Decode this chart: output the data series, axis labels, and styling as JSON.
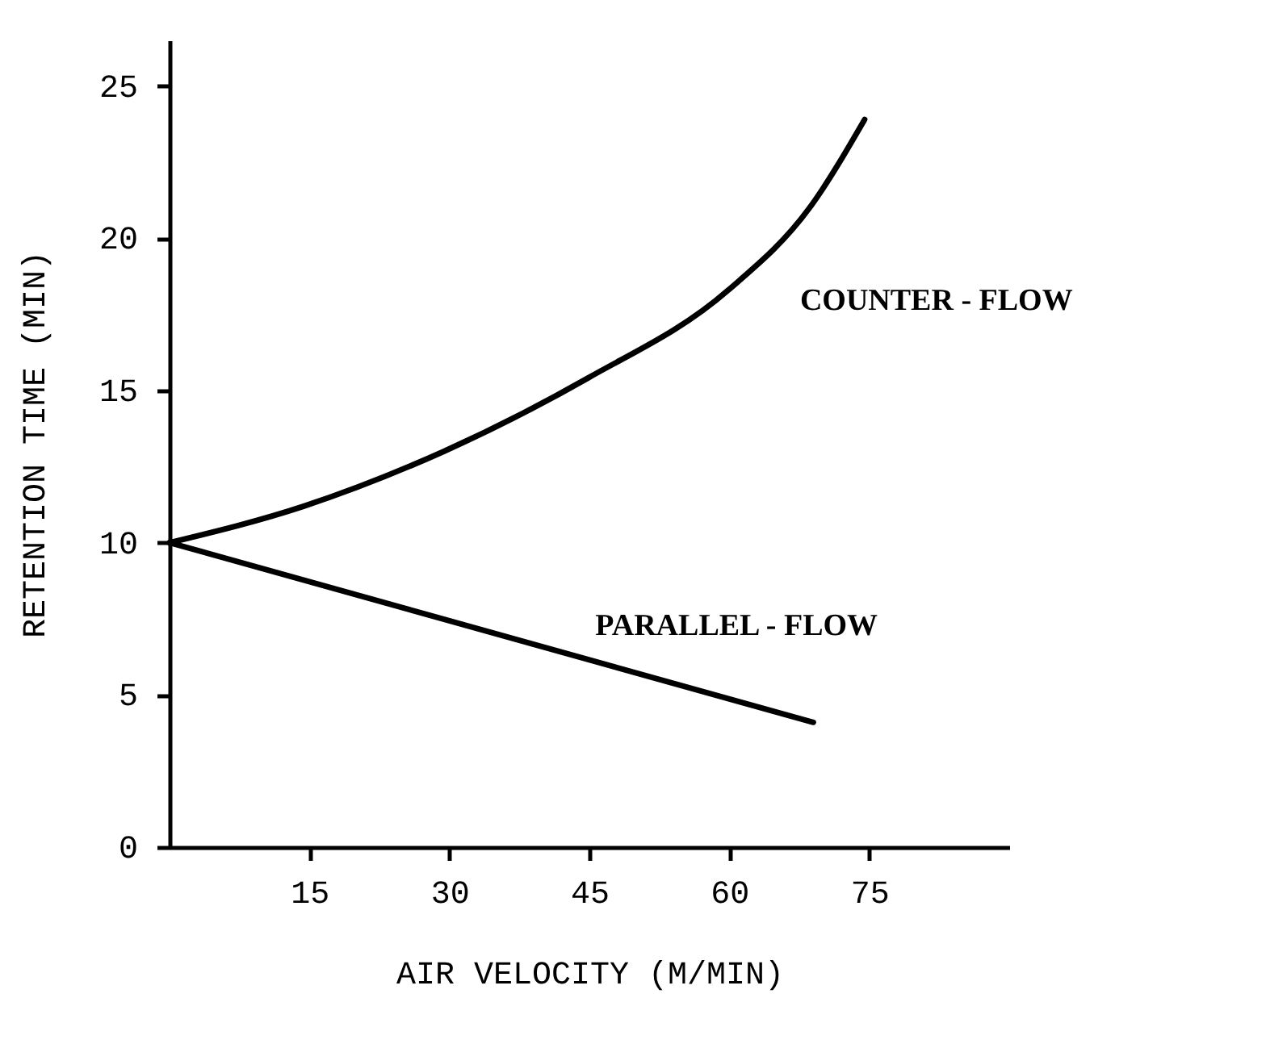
{
  "chart_data": {
    "type": "line",
    "xlabel": "AIR VELOCITY (M/MIN)",
    "ylabel": "RETENTION TIME (MIN)",
    "xlim": [
      0,
      90
    ],
    "ylim": [
      0,
      26.5
    ],
    "xticks": [
      15,
      30,
      45,
      60,
      75
    ],
    "yticks": [
      0,
      5,
      10,
      15,
      20,
      25
    ],
    "grid": false,
    "marker": "none",
    "line_style": "solid",
    "series": [
      {
        "name": "COUNTER - FLOW",
        "color": "#000000",
        "x": [
          0,
          14.4,
          29.4,
          44.8,
          59.9,
          68.6,
          74.5
        ],
        "values": [
          10,
          11.2,
          13.0,
          15.4,
          18.3,
          21.0,
          23.9
        ]
      },
      {
        "name": "PARALLEL - FLOW",
        "color": "#000000",
        "x": [
          0,
          69
        ],
        "values": [
          10,
          4.1
        ]
      }
    ]
  }
}
